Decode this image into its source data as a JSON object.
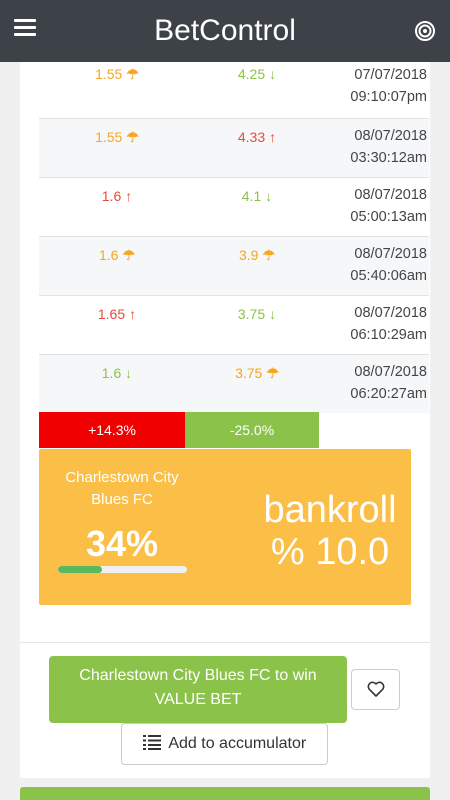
{
  "app": {
    "title": "BetControl"
  },
  "icons": {
    "menu": "hamburger-menu-icon",
    "target": "target-icon",
    "umbrella": "umbrella-icon",
    "arrow_up": "arrow-up-icon",
    "arrow_down": "arrow-down-icon",
    "heart": "heart-icon",
    "list": "list-icon"
  },
  "colors": {
    "orange": "#f5a623",
    "red": "#e74c3c",
    "green": "#8bc34a",
    "stake_bg": "#fbbf47"
  },
  "odds_rows": [
    {
      "home": "1.55",
      "home_color": "orange",
      "home_icon": "☂",
      "away": "4.25",
      "away_color": "green",
      "away_icon": "↓",
      "date": "07/07/2018",
      "time": "09:10:07pm"
    },
    {
      "home": "1.55",
      "home_color": "orange",
      "home_icon": "☂",
      "away": "4.33",
      "away_color": "red",
      "away_icon": "↑",
      "date": "08/07/2018",
      "time": "03:30:12am"
    },
    {
      "home": "1.6",
      "home_color": "red",
      "home_icon": "↑",
      "away": "4.1",
      "away_color": "green",
      "away_icon": "↓",
      "date": "08/07/2018",
      "time": "05:00:13am"
    },
    {
      "home": "1.6",
      "home_color": "orange",
      "home_icon": "☂",
      "away": "3.9",
      "away_color": "orange",
      "away_icon": "☂",
      "date": "08/07/2018",
      "time": "05:40:06am"
    },
    {
      "home": "1.65",
      "home_color": "red",
      "home_icon": "↑",
      "away": "3.75",
      "away_color": "green",
      "away_icon": "↓",
      "date": "08/07/2018",
      "time": "06:10:29am"
    },
    {
      "home": "1.6",
      "home_color": "green",
      "home_icon": "↓",
      "away": "3.75",
      "away_color": "orange",
      "away_icon": "☂",
      "date": "08/07/2018",
      "time": "06:20:27am"
    }
  ],
  "stats": {
    "positive": "+14.3%",
    "negative": "-25.0%"
  },
  "stake": {
    "team": "Charlestown City Blues FC",
    "percent": "34%",
    "probability_fraction": 0.34,
    "bankroll_label": "bankroll",
    "bankroll_value": "% 10.0"
  },
  "actions": {
    "value_bet_line1": "Charlestown City Blues FC to win",
    "value_bet_line2": "VALUE BET",
    "accumulator": "Add to accumulator"
  }
}
